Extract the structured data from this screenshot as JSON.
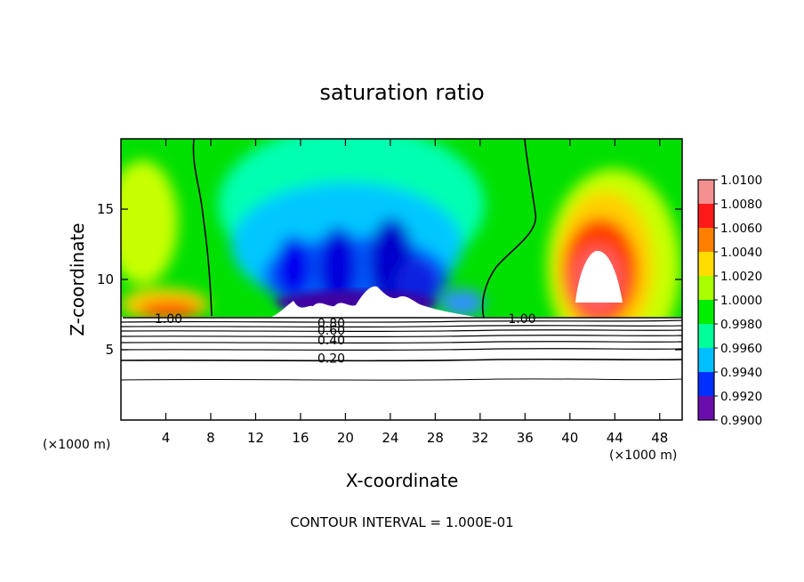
{
  "chart_data": {
    "type": "heatmap",
    "title": "saturation ratio",
    "xlabel": "X-coordinate",
    "ylabel": "Z-coordinate",
    "x_unit_left": "(×1000 m)",
    "x_unit_right": "(×1000 m)",
    "footer": "CONTOUR INTERVAL = 1.000E-01",
    "xlim": [
      0,
      50
    ],
    "ylim": [
      0,
      20
    ],
    "x_ticks": [
      4,
      8,
      12,
      16,
      20,
      24,
      28,
      32,
      36,
      40,
      44,
      48
    ],
    "y_ticks": [
      5,
      10,
      15
    ],
    "colorbar": {
      "range": [
        0.99,
        1.01
      ],
      "labels": [
        "1.0100",
        "1.0080",
        "1.0060",
        "1.0040",
        "1.0020",
        "1.0000",
        "0.9980",
        "0.9960",
        "0.9940",
        "0.9920",
        "0.9900"
      ],
      "colors": [
        "#f08080",
        "#ff0000",
        "#ff8c00",
        "#ffff00",
        "#00ff00",
        "#00ff99",
        "#00bfff",
        "#0000ff",
        "#800080"
      ]
    },
    "contour_labels": [
      {
        "text": "1.00",
        "x": 3,
        "z": 7.2
      },
      {
        "text": "0.80",
        "x": 17.5,
        "z": 6.9
      },
      {
        "text": "0.60",
        "x": 17.5,
        "z": 6.4
      },
      {
        "text": "0.40",
        "x": 17.5,
        "z": 5.7
      },
      {
        "text": "0.20",
        "x": 17.5,
        "z": 4.4
      },
      {
        "text": "1.00",
        "x": 34.5,
        "z": 7.2
      }
    ]
  }
}
